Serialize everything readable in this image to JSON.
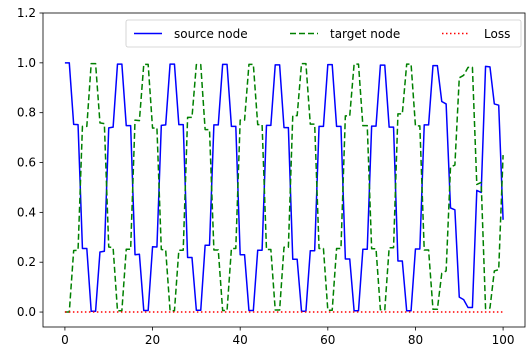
{
  "chart_data": {
    "type": "line",
    "title": "",
    "xlabel": "",
    "ylabel": "",
    "xlim": [
      -5,
      105
    ],
    "ylim": [
      -0.06,
      1.2
    ],
    "x_ticks": [
      0,
      20,
      40,
      60,
      80,
      100
    ],
    "x_tick_labels": [
      "0",
      "20",
      "40",
      "60",
      "80",
      "100"
    ],
    "y_ticks": [
      0.0,
      0.2,
      0.4,
      0.6,
      0.8,
      1.0,
      1.2
    ],
    "y_tick_labels": [
      "0.0",
      "0.2",
      "0.4",
      "0.6",
      "0.8",
      "1.0",
      "1.2"
    ],
    "grid": false,
    "legend": {
      "position": "top-right",
      "columns": 3
    },
    "x": [
      0,
      1,
      2,
      3,
      4,
      5,
      6,
      7,
      8,
      9,
      10,
      11,
      12,
      13,
      14,
      15,
      16,
      17,
      18,
      19,
      20,
      21,
      22,
      23,
      24,
      25,
      26,
      27,
      28,
      29,
      30,
      31,
      32,
      33,
      34,
      35,
      36,
      37,
      38,
      39,
      40,
      41,
      42,
      43,
      44,
      45,
      46,
      47,
      48,
      49,
      50,
      51,
      52,
      53,
      54,
      55,
      56,
      57,
      58,
      59,
      60,
      61,
      62,
      63,
      64,
      65,
      66,
      67,
      68,
      69,
      70,
      71,
      72,
      73,
      74,
      75,
      76,
      77,
      78,
      79,
      80,
      81,
      82,
      83,
      84,
      85,
      86,
      87,
      88,
      89,
      90,
      91,
      92,
      93,
      94,
      95,
      96,
      97,
      98,
      99,
      100
    ],
    "series": [
      {
        "name": "source node",
        "color": "#0000ff",
        "line_style": "solid",
        "values": [
          1.0,
          1.0,
          0.753,
          0.752,
          0.255,
          0.255,
          0.003,
          0.003,
          0.241,
          0.244,
          0.739,
          0.742,
          0.995,
          0.995,
          0.748,
          0.748,
          0.23,
          0.232,
          0.006,
          0.006,
          0.262,
          0.261,
          0.749,
          0.751,
          0.995,
          0.995,
          0.752,
          0.752,
          0.219,
          0.219,
          0.007,
          0.007,
          0.268,
          0.268,
          0.751,
          0.751,
          0.994,
          0.994,
          0.745,
          0.745,
          0.23,
          0.23,
          0.006,
          0.006,
          0.248,
          0.248,
          0.749,
          0.749,
          0.992,
          0.992,
          0.74,
          0.74,
          0.212,
          0.212,
          0.003,
          0.003,
          0.246,
          0.246,
          0.745,
          0.745,
          0.993,
          0.993,
          0.745,
          0.745,
          0.213,
          0.213,
          0.005,
          0.005,
          0.252,
          0.252,
          0.746,
          0.746,
          0.991,
          0.991,
          0.742,
          0.742,
          0.205,
          0.205,
          0.005,
          0.005,
          0.253,
          0.253,
          0.751,
          0.751,
          0.989,
          0.989,
          0.845,
          0.835,
          0.418,
          0.41,
          0.06,
          0.05,
          0.018,
          0.018,
          0.488,
          0.48,
          0.986,
          0.984,
          0.835,
          0.83,
          0.37
        ]
      },
      {
        "name": "target node",
        "color": "#008000",
        "line_style": "dashed",
        "values": [
          0.0,
          0.0,
          0.247,
          0.248,
          0.745,
          0.745,
          0.997,
          0.997,
          0.759,
          0.756,
          0.261,
          0.258,
          0.005,
          0.005,
          0.252,
          0.252,
          0.77,
          0.768,
          0.994,
          0.994,
          0.738,
          0.739,
          0.251,
          0.249,
          0.005,
          0.005,
          0.248,
          0.248,
          0.781,
          0.781,
          0.993,
          0.993,
          0.732,
          0.732,
          0.249,
          0.249,
          0.006,
          0.006,
          0.255,
          0.255,
          0.77,
          0.77,
          0.994,
          0.994,
          0.752,
          0.752,
          0.251,
          0.251,
          0.008,
          0.008,
          0.26,
          0.26,
          0.788,
          0.788,
          0.997,
          0.997,
          0.754,
          0.754,
          0.255,
          0.255,
          0.007,
          0.007,
          0.255,
          0.255,
          0.787,
          0.787,
          0.995,
          0.995,
          0.748,
          0.748,
          0.254,
          0.254,
          0.009,
          0.009,
          0.258,
          0.258,
          0.795,
          0.795,
          0.995,
          0.995,
          0.747,
          0.747,
          0.249,
          0.249,
          0.011,
          0.011,
          0.155,
          0.165,
          0.582,
          0.59,
          0.94,
          0.95,
          0.982,
          0.982,
          0.512,
          0.52,
          0.014,
          0.016,
          0.165,
          0.17,
          0.63
        ]
      },
      {
        "name": "Loss",
        "color": "#ff0000",
        "line_style": "dotted",
        "values": [
          0,
          0,
          0,
          0,
          0,
          0,
          0,
          0,
          0,
          0,
          0,
          0,
          0,
          0,
          0,
          0,
          0,
          0,
          0,
          0,
          0,
          0,
          0,
          0,
          0,
          0,
          0,
          0,
          0,
          0,
          0,
          0,
          0,
          0,
          0,
          0,
          0,
          0,
          0,
          0,
          0,
          0,
          0,
          0,
          0,
          0,
          0,
          0,
          0,
          0,
          0,
          0,
          0,
          0,
          0,
          0,
          0,
          0,
          0,
          0,
          0,
          0,
          0,
          0,
          0,
          0,
          0,
          0,
          0,
          0,
          0,
          0,
          0,
          0,
          0,
          0,
          0,
          0,
          0,
          0,
          0,
          0,
          0,
          0,
          0,
          0,
          0,
          0,
          0,
          0,
          0,
          0,
          0,
          0,
          0,
          0,
          0,
          0,
          0,
          0,
          0
        ]
      }
    ]
  }
}
